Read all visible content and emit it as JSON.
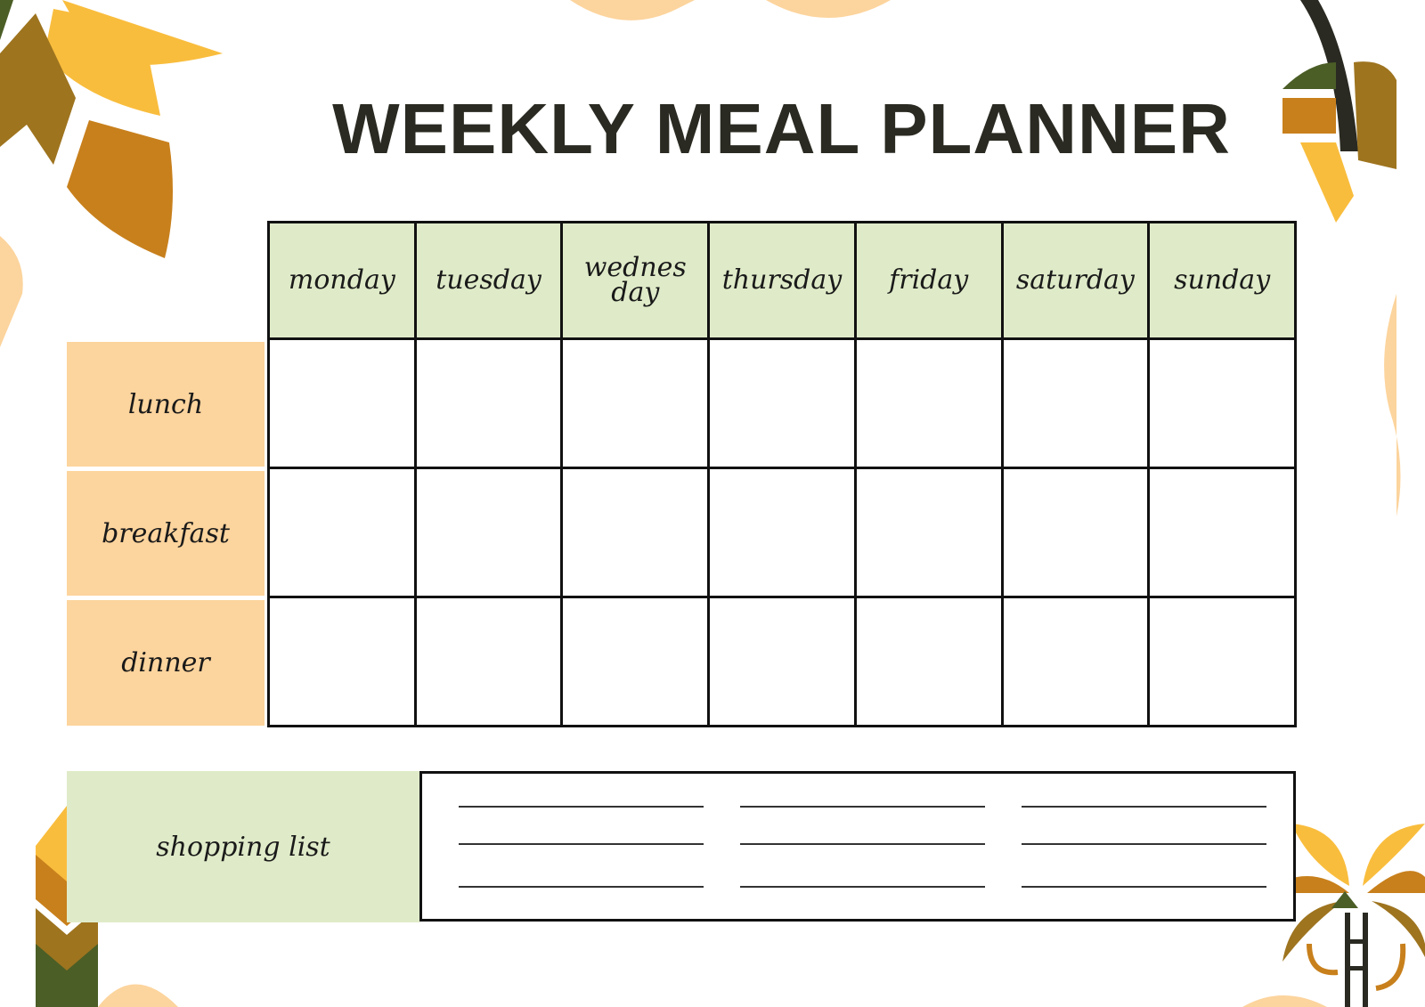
{
  "title": "WEEKLY MEAL PLANNER",
  "days": [
    "monday",
    "tuesday",
    "wednesday",
    "thursday",
    "friday",
    "saturday",
    "sunday"
  ],
  "meals": [
    "lunch",
    "breakfast",
    "dinner"
  ],
  "shopping_list": {
    "label": "shopping list",
    "columns": 3,
    "lines_per_column": 3
  },
  "colors": {
    "header_green": "#dfebc8",
    "meal_orange": "#fcd49d",
    "leaf_yellow": "#f9bd3d",
    "leaf_orange": "#c8801c",
    "leaf_olive": "#9e741f",
    "leaf_green": "#4b5e26",
    "ink": "#2a2a22"
  }
}
